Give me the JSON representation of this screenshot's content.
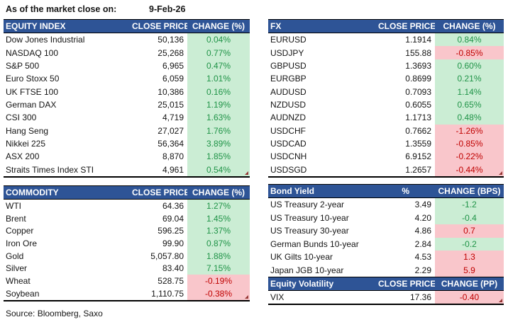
{
  "meta": {
    "as_of_label": "As of the market close on:",
    "as_of_date": "9-Feb-26",
    "source": "Source: Bloomberg, Saxo"
  },
  "colors": {
    "header_bg": "#2E5496",
    "header_text": "#FFFFFF",
    "pos_bg": "#CBEDD4",
    "pos_text": "#1F9347",
    "neg_bg": "#F9C6CB",
    "neg_text": "#C00000",
    "corner_mark": "#953735"
  },
  "tables": {
    "equity": {
      "title": "EQUITY INDEX",
      "col2": "CLOSE PRICE",
      "col3": "CHANGE (%)",
      "rows": [
        {
          "name": "Dow Jones Industrial",
          "value": "50,136",
          "change": "0.04%",
          "tone": "green"
        },
        {
          "name": "NASDAQ 100",
          "value": "25,268",
          "change": "0.77%",
          "tone": "green"
        },
        {
          "name": "S&P 500",
          "value": "6,965",
          "change": "0.47%",
          "tone": "green"
        },
        {
          "name": "Euro Stoxx 50",
          "value": "6,059",
          "change": "1.01%",
          "tone": "green"
        },
        {
          "name": "UK FTSE 100",
          "value": "10,386",
          "change": "0.16%",
          "tone": "green"
        },
        {
          "name": "German DAX",
          "value": "25,015",
          "change": "1.19%",
          "tone": "green"
        },
        {
          "name": "CSI 300",
          "value": "4,719",
          "change": "1.63%",
          "tone": "green"
        },
        {
          "name": "Hang Seng",
          "value": "27,027",
          "change": "1.76%",
          "tone": "green"
        },
        {
          "name": "Nikkei 225",
          "value": "56,364",
          "change": "3.89%",
          "tone": "green"
        },
        {
          "name": "ASX 200",
          "value": "8,870",
          "change": "1.85%",
          "tone": "green"
        },
        {
          "name": "Straits Times Index STI",
          "value": "4,961",
          "change": "0.54%",
          "tone": "green"
        }
      ]
    },
    "fx": {
      "title": "FX",
      "col2": "CLOSE PRICE",
      "col3": "CHANGE (%)",
      "rows": [
        {
          "name": "EURUSD",
          "value": "1.1914",
          "change": "0.84%",
          "tone": "green"
        },
        {
          "name": "USDJPY",
          "value": "155.88",
          "change": "-0.85%",
          "tone": "red"
        },
        {
          "name": "GBPUSD",
          "value": "1.3693",
          "change": "0.60%",
          "tone": "green"
        },
        {
          "name": "EURGBP",
          "value": "0.8699",
          "change": "0.21%",
          "tone": "green"
        },
        {
          "name": "AUDUSD",
          "value": "0.7093",
          "change": "1.14%",
          "tone": "green"
        },
        {
          "name": "NZDUSD",
          "value": "0.6055",
          "change": "0.65%",
          "tone": "green"
        },
        {
          "name": "AUDNZD",
          "value": "1.1713",
          "change": "0.48%",
          "tone": "green"
        },
        {
          "name": "USDCHF",
          "value": "0.7662",
          "change": "-1.26%",
          "tone": "red"
        },
        {
          "name": "USDCAD",
          "value": "1.3559",
          "change": "-0.85%",
          "tone": "red"
        },
        {
          "name": "USDCNH",
          "value": "6.9152",
          "change": "-0.22%",
          "tone": "red"
        },
        {
          "name": "USDSGD",
          "value": "1.2657",
          "change": "-0.44%",
          "tone": "red"
        }
      ]
    },
    "commodity": {
      "title": "COMMODITY",
      "col2": "CLOSE PRICE",
      "col3": "CHANGE (%)",
      "rows": [
        {
          "name": "WTI",
          "value": "64.36",
          "change": "1.27%",
          "tone": "green"
        },
        {
          "name": "Brent",
          "value": "69.04",
          "change": "1.45%",
          "tone": "green"
        },
        {
          "name": "Copper",
          "value": "596.25",
          "change": "1.37%",
          "tone": "green"
        },
        {
          "name": "Iron Ore",
          "value": "99.90",
          "change": "0.87%",
          "tone": "green"
        },
        {
          "name": "Gold",
          "value": "5,057.80",
          "change": "1.88%",
          "tone": "green"
        },
        {
          "name": "Silver",
          "value": "83.40",
          "change": "7.15%",
          "tone": "green"
        },
        {
          "name": "Wheat",
          "value": "528.75",
          "change": "-0.19%",
          "tone": "red"
        },
        {
          "name": "Soybean",
          "value": "1,110.75",
          "change": "-0.38%",
          "tone": "red"
        }
      ]
    },
    "bond": {
      "title": "Bond Yield",
      "col2": "%",
      "col3": "CHANGE (BPS)",
      "rows": [
        {
          "name": "US Treasury 2-year",
          "value": "3.49",
          "change": "-1.2",
          "tone": "green"
        },
        {
          "name": "US Treasury 10-year",
          "value": "4.20",
          "change": "-0.4",
          "tone": "green"
        },
        {
          "name": "US Treasury 30-year",
          "value": "4.86",
          "change": "0.7",
          "tone": "red"
        },
        {
          "name": "German Bunds 10-year",
          "value": "2.84",
          "change": "-0.2",
          "tone": "green"
        },
        {
          "name": "UK Gilts 10-year",
          "value": "4.53",
          "change": "1.3",
          "tone": "red"
        },
        {
          "name": "Japan JGB 10-year",
          "value": "2.29",
          "change": "5.9",
          "tone": "red"
        }
      ]
    },
    "volatility": {
      "title": "Equity Volatility",
      "col2": "CLOSE PRICE",
      "col3": "CHANGE (PP)",
      "rows": [
        {
          "name": "VIX",
          "value": "17.36",
          "change": "-0.40",
          "tone": "red"
        }
      ]
    }
  }
}
